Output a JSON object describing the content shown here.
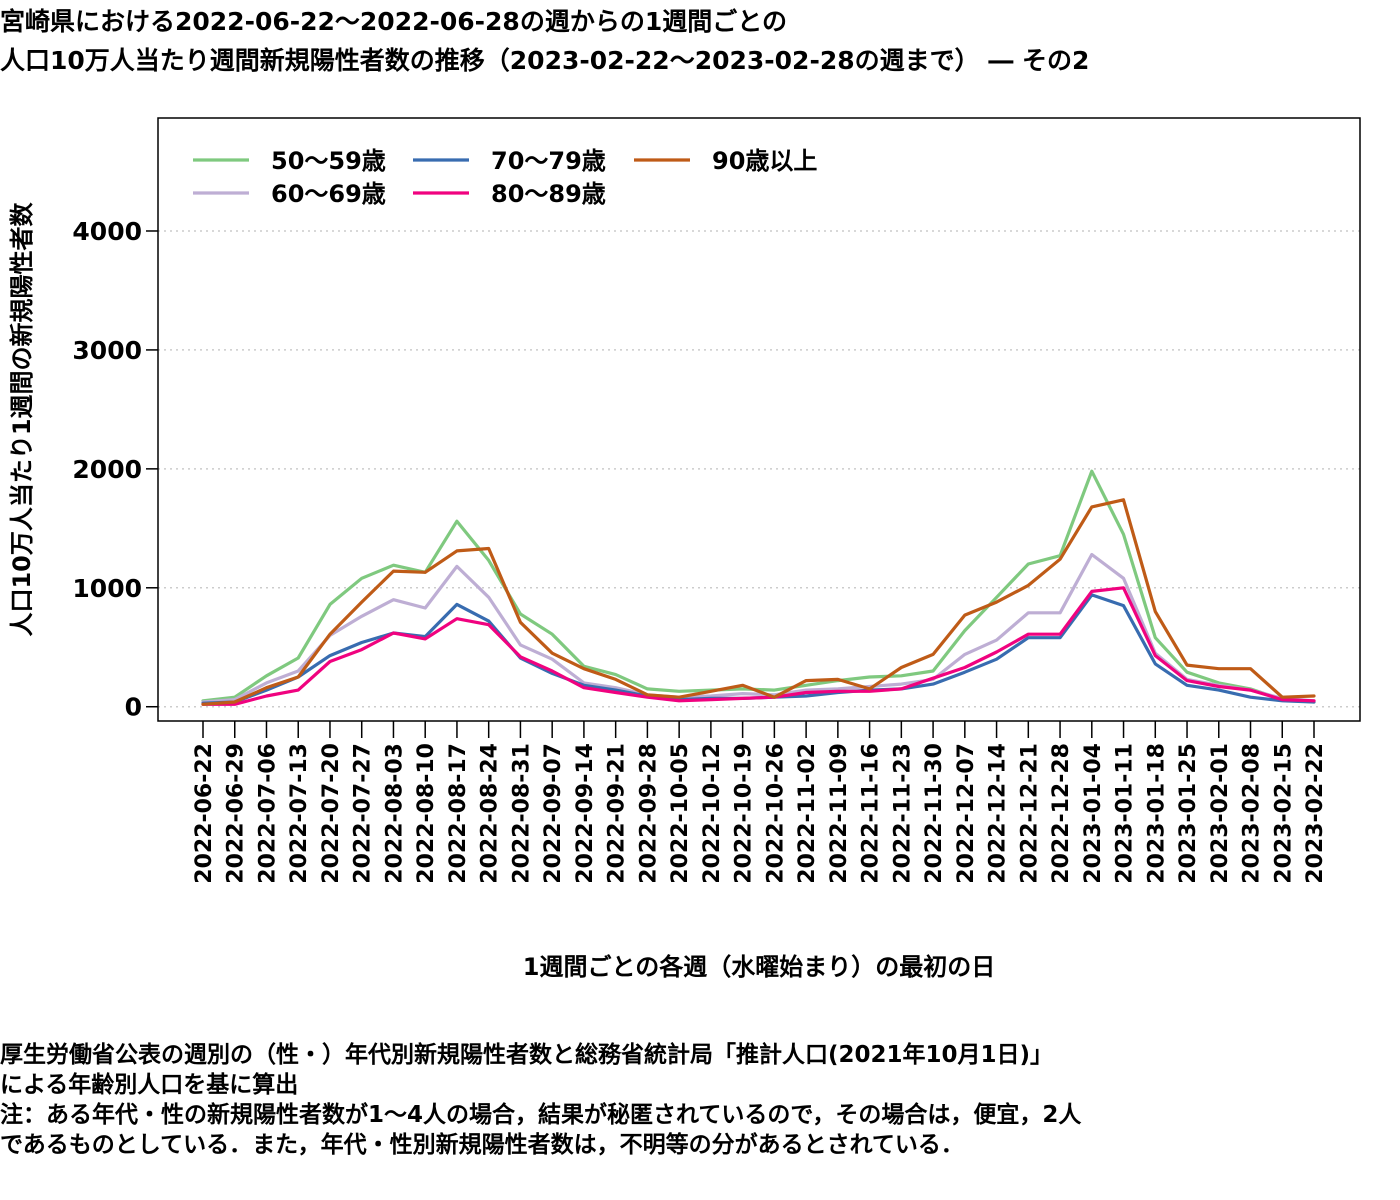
{
  "title": {
    "line1": "宮崎県における2022-06-22〜2022-06-28の週からの1週間ごとの",
    "line2": "人口10万人当たり週間新規陽性者数の推移（2023-02-22〜2023-02-28の週まで） ― その2"
  },
  "notes": [
    "厚生労働省公表の週別の（性・）年代別新規陽性者数と総務省統計局「推計人口(2021年10月1日)」",
    "による年齢別人口を基に算出",
    "注：ある年代・性の新規陽性者数が1〜4人の場合，結果が秘匿されているので，その場合は，便宜，2人",
    "であるものとしている．また，年代・性別新規陽性者数は，不明等の分があるとされている．"
  ],
  "chart_data": {
    "type": "line",
    "xlabel": "1週間ごとの各週（水曜始まり）の最初の日",
    "ylabel": "人口10万人当たり1週間の新規陽性者数",
    "ylim": [
      -120,
      4950
    ],
    "yticks": [
      0,
      1000,
      2000,
      3000,
      4000
    ],
    "grid": "horizontal dotted",
    "legend": "top-left",
    "categories": [
      "2022-06-22",
      "2022-06-29",
      "2022-07-06",
      "2022-07-13",
      "2022-07-20",
      "2022-07-27",
      "2022-08-03",
      "2022-08-10",
      "2022-08-17",
      "2022-08-24",
      "2022-08-31",
      "2022-09-07",
      "2022-09-14",
      "2022-09-21",
      "2022-09-28",
      "2022-10-05",
      "2022-10-12",
      "2022-10-19",
      "2022-10-26",
      "2022-11-02",
      "2022-11-09",
      "2022-11-16",
      "2022-11-23",
      "2022-11-30",
      "2022-12-07",
      "2022-12-14",
      "2022-12-21",
      "2022-12-28",
      "2023-01-04",
      "2023-01-11",
      "2023-01-18",
      "2023-01-25",
      "2023-02-01",
      "2023-02-08",
      "2023-02-15",
      "2023-02-22"
    ],
    "series": [
      {
        "name": "50〜59歳",
        "color": "#7fc97f",
        "values": [
          50,
          80,
          260,
          410,
          860,
          1080,
          1190,
          1130,
          1560,
          1230,
          780,
          610,
          340,
          270,
          150,
          130,
          140,
          150,
          140,
          180,
          220,
          250,
          260,
          300,
          640,
          920,
          1200,
          1270,
          1980,
          1450,
          580,
          290,
          200,
          150,
          60,
          40
        ]
      },
      {
        "name": "60〜69歳",
        "color": "#beaed4",
        "values": [
          40,
          60,
          200,
          300,
          600,
          760,
          900,
          830,
          1180,
          920,
          520,
          400,
          200,
          160,
          100,
          80,
          90,
          110,
          100,
          140,
          150,
          170,
          190,
          230,
          440,
          560,
          790,
          790,
          1280,
          1080,
          450,
          230,
          180,
          140,
          70,
          50
        ]
      },
      {
        "name": "70〜79歳",
        "color": "#386cb0",
        "values": [
          30,
          40,
          140,
          250,
          430,
          540,
          620,
          590,
          860,
          720,
          410,
          280,
          180,
          140,
          90,
          60,
          70,
          70,
          80,
          90,
          120,
          140,
          150,
          190,
          290,
          400,
          580,
          580,
          940,
          850,
          360,
          180,
          140,
          80,
          50,
          40
        ]
      },
      {
        "name": "80〜89歳",
        "color": "#f0027f",
        "values": [
          20,
          20,
          90,
          140,
          380,
          480,
          620,
          570,
          740,
          690,
          420,
          300,
          160,
          120,
          80,
          50,
          60,
          70,
          80,
          120,
          130,
          130,
          150,
          240,
          330,
          460,
          610,
          610,
          970,
          1000,
          430,
          220,
          170,
          140,
          60,
          50
        ]
      },
      {
        "name": "90歳以上",
        "color": "#bf5b17",
        "values": [
          20,
          40,
          160,
          250,
          610,
          880,
          1140,
          1130,
          1310,
          1330,
          710,
          450,
          320,
          230,
          100,
          80,
          130,
          180,
          80,
          220,
          230,
          150,
          330,
          440,
          770,
          880,
          1020,
          1240,
          1680,
          1740,
          800,
          350,
          320,
          320,
          80,
          90
        ]
      }
    ]
  }
}
